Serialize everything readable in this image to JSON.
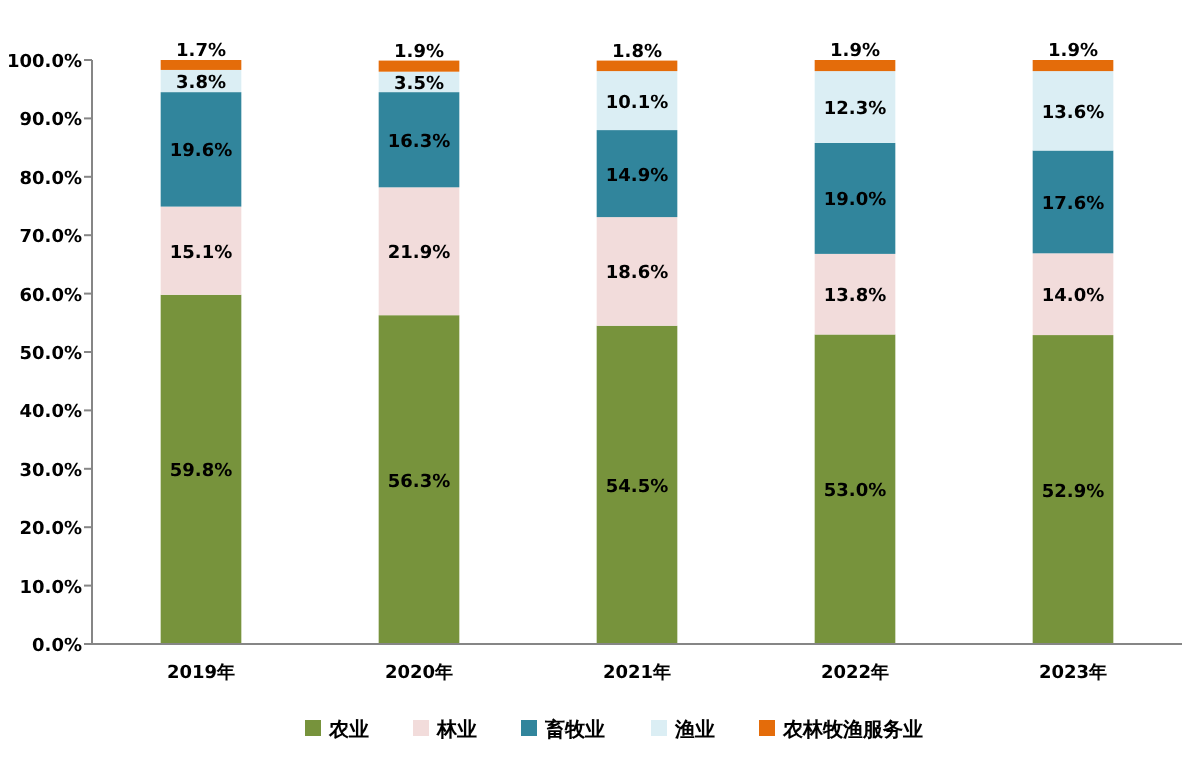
{
  "chart_data": {
    "type": "bar",
    "stacked": true,
    "data_labels": true,
    "legend": "bottom",
    "grid": false,
    "categories": [
      "2019年",
      "2020年",
      "2021年",
      "2022年",
      "2023年"
    ],
    "ylim": [
      0,
      100
    ],
    "yticks": [
      {
        "value": 0,
        "label": "0.0%"
      },
      {
        "value": 10,
        "label": "10.0%"
      },
      {
        "value": 20,
        "label": "20.0%"
      },
      {
        "value": 30,
        "label": "30.0%"
      },
      {
        "value": 40,
        "label": "40.0%"
      },
      {
        "value": 50,
        "label": "50.0%"
      },
      {
        "value": 60,
        "label": "60.0%"
      },
      {
        "value": 70,
        "label": "70.0%"
      },
      {
        "value": 80,
        "label": "80.0%"
      },
      {
        "value": 90,
        "label": "90.0%"
      },
      {
        "value": 100,
        "label": "100.0%"
      }
    ],
    "series": [
      {
        "name": "农业",
        "color": "#77933c",
        "values": [
          59.8,
          56.3,
          54.5,
          53.0,
          52.9
        ],
        "value_labels": [
          "59.8%",
          "56.3%",
          "54.5%",
          "53.0%",
          "52.9%"
        ]
      },
      {
        "name": "林业",
        "color": "#f2dcdb",
        "values": [
          15.1,
          21.9,
          18.6,
          13.8,
          14.0
        ],
        "value_labels": [
          "15.1%",
          "21.9%",
          "18.6%",
          "13.8%",
          "14.0%"
        ]
      },
      {
        "name": "畜牧业",
        "color": "#31859c",
        "values": [
          19.6,
          16.3,
          14.9,
          19.0,
          17.6
        ],
        "value_labels": [
          "19.6%",
          "16.3%",
          "14.9%",
          "19.0%",
          "17.6%"
        ]
      },
      {
        "name": "渔业",
        "color": "#dbeef4",
        "values": [
          3.8,
          3.5,
          10.1,
          12.3,
          13.6
        ],
        "value_labels": [
          "3.8%",
          "3.5%",
          "10.1%",
          "12.3%",
          "13.6%"
        ]
      },
      {
        "name": "农林牧渔服务业",
        "color": "#e46c0a",
        "values": [
          1.7,
          1.9,
          1.8,
          1.9,
          1.9
        ],
        "value_labels": [
          "1.7%",
          "1.9%",
          "1.8%",
          "1.9%",
          "1.9%"
        ]
      }
    ]
  }
}
